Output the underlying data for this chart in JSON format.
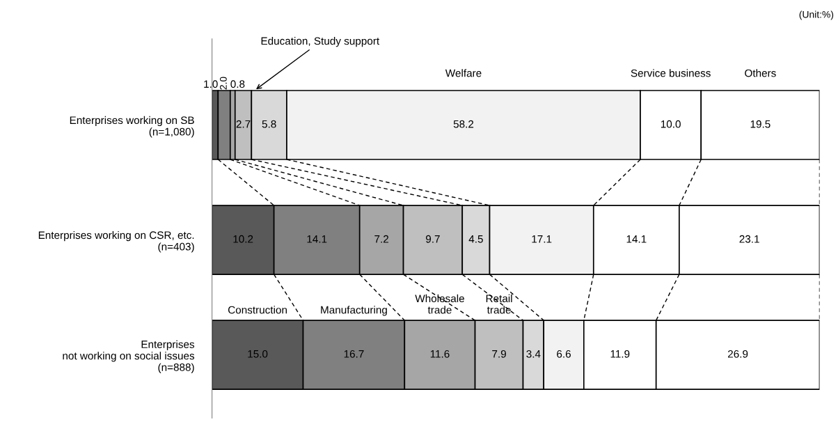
{
  "chart_data": {
    "type": "bar",
    "orientation": "horizontal",
    "stacked": true,
    "grid": false,
    "legend": false,
    "categories": [
      "Enterprises working on SB\n(n=1,080)",
      "Enterprises working on CSR, etc.\n(n=403)",
      "Enterprises\nnot working on social issues\n(n=888)"
    ],
    "xlim": [
      0,
      100
    ],
    "series": [
      {
        "name": "Construction",
        "color": "#595959",
        "values": [
          1.0,
          10.2,
          15.0
        ],
        "value_labels": [
          "1.0",
          "10.2",
          "15.0"
        ]
      },
      {
        "name": "Manufacturing",
        "color": "#808080",
        "values": [
          2.0,
          14.1,
          16.7
        ],
        "value_labels": [
          "2.0",
          "14.1",
          "16.7"
        ]
      },
      {
        "name": "Wholesale\ntrade",
        "color": "#a6a6a6",
        "values": [
          0.8,
          7.2,
          11.6
        ],
        "value_labels": [
          "0.8",
          "7.2",
          "11.6"
        ]
      },
      {
        "name": "Retail\ntrade",
        "color": "#bfbfbf",
        "values": [
          2.7,
          9.7,
          7.9
        ],
        "value_labels": [
          "2.7",
          "9.7",
          "7.9"
        ]
      },
      {
        "name": "Education, Study support",
        "color": "#d9d9d9",
        "values": [
          5.8,
          4.5,
          3.4
        ],
        "value_labels": [
          "5.8",
          "4.5",
          "3.4"
        ]
      },
      {
        "name": "Welfare",
        "color": "#f2f2f2",
        "values": [
          58.2,
          17.1,
          6.6
        ],
        "value_labels": [
          "58.2",
          "17.1",
          "6.6"
        ]
      },
      {
        "name": "Service business",
        "color": "#ffffff",
        "values": [
          10.0,
          14.1,
          11.9
        ],
        "value_labels": [
          "10.0",
          "14.1",
          "11.9"
        ]
      },
      {
        "name": "Others",
        "color": "#ffffff",
        "values": [
          19.5,
          23.1,
          26.9
        ],
        "value_labels": [
          "19.5",
          "23.1",
          "26.9"
        ]
      }
    ],
    "annotations": [
      "(Unit:%)"
    ]
  }
}
